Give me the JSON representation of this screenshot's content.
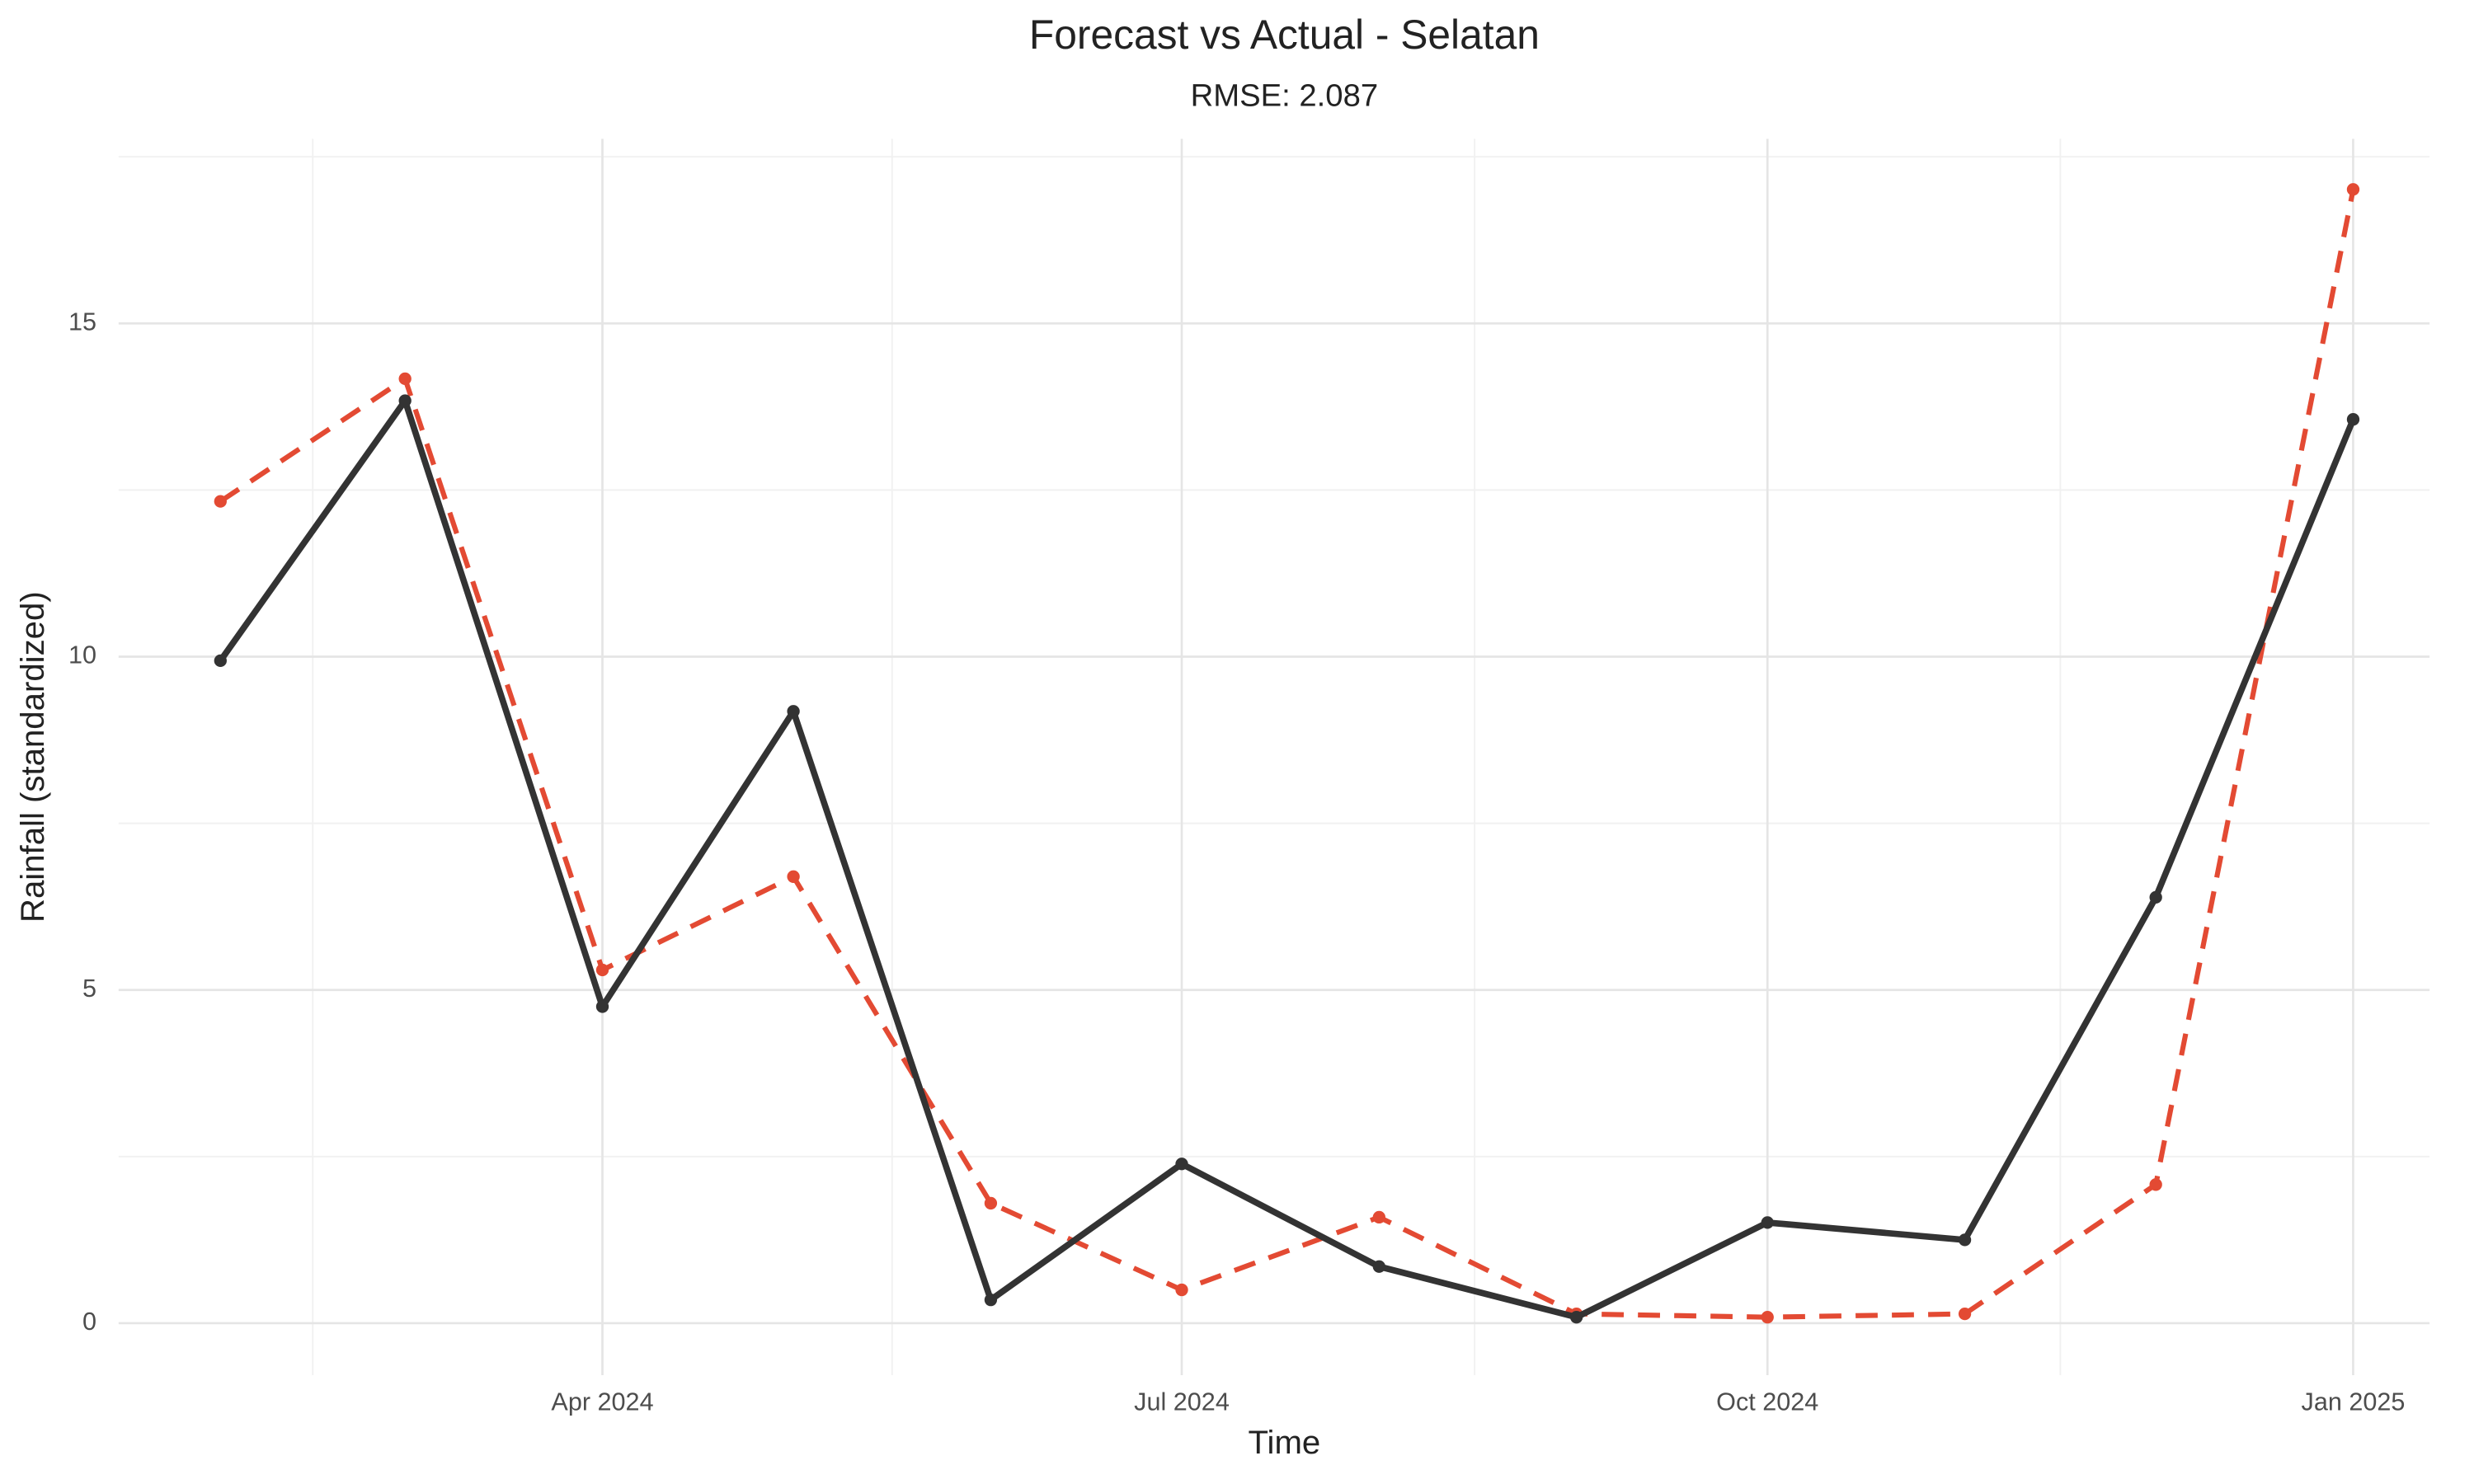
{
  "chart_data": {
    "type": "line",
    "title": "Forecast vs Actual - Selatan",
    "subtitle": "RMSE: 2.087",
    "x_label": "Time",
    "y_label": "Rainfall (standardized)",
    "x": [
      "2024-02",
      "2024-03",
      "2024-04",
      "2024-05",
      "2024-06",
      "2024-07",
      "2024-08",
      "2024-09",
      "2024-10",
      "2024-11",
      "2024-12",
      "2025-01"
    ],
    "series": [
      {
        "color": "#e34a33",
        "dashed": true,
        "values": [
          12.33,
          14.17,
          5.3,
          6.7,
          1.8,
          0.5,
          1.59,
          0.14,
          0.09,
          0.14,
          2.08,
          17.01
        ]
      },
      {
        "color": "#333333",
        "dashed": false,
        "values": [
          9.94,
          13.84,
          4.75,
          9.18,
          0.35,
          2.39,
          0.85,
          0.09,
          1.51,
          1.25,
          6.39,
          13.56
        ]
      }
    ],
    "xlim": [
      "2024-01-16",
      "2025-01-13"
    ],
    "xticks": [
      {
        "value": "2024-04",
        "label": "Apr 2024"
      },
      {
        "value": "2024-07",
        "label": "Jul 2024"
      },
      {
        "value": "2024-10",
        "label": "Oct 2024"
      },
      {
        "value": "2025-01",
        "label": "Jan 2025"
      }
    ],
    "ylim": [
      -0.78,
      17.77
    ],
    "yticks": [
      0,
      5,
      10,
      15
    ],
    "grid": true
  }
}
